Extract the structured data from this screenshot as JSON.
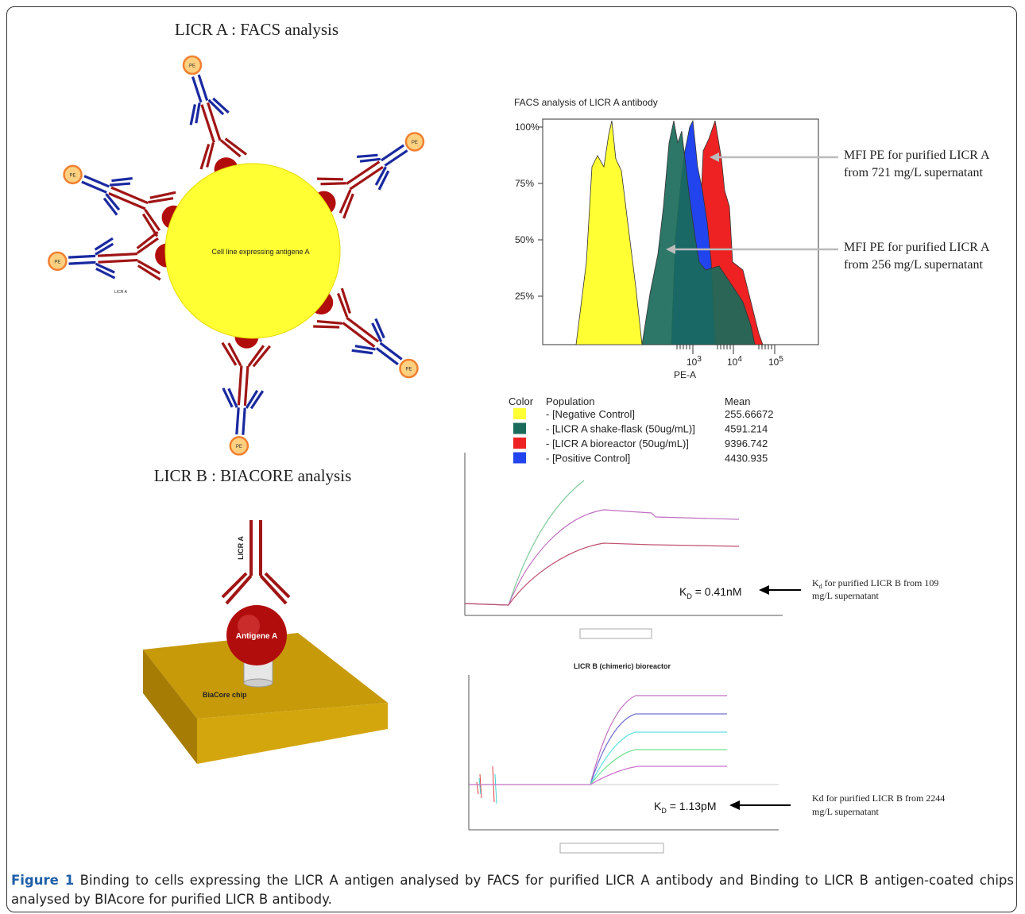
{
  "facs": {
    "title": "LICR A : FACS analysis",
    "cell_label": "Cell line expressing antigene A",
    "pe_label": "PE",
    "antibody_label": "LICR A",
    "histogram": {
      "title": "FACS analysis of LICR A antibody",
      "yticks": [
        "100%",
        "75%",
        "50%",
        "25%"
      ],
      "xticks": [
        {
          "base": "10",
          "exp": "3"
        },
        {
          "base": "10",
          "exp": "4"
        },
        {
          "base": "10",
          "exp": "5"
        }
      ],
      "xlabel": "PE-A"
    },
    "annotations": [
      [
        "MFI PE for purified LICR A",
        "from 721 mg/L supernatant"
      ],
      [
        "MFI PE for purified LICR A",
        "from 256 mg/L supernatant"
      ]
    ],
    "legend": {
      "header": [
        "Color",
        "Population",
        "Mean"
      ],
      "rows": [
        {
          "color": "#ffff33",
          "population": "- [Negative Control]",
          "mean": "255.66672"
        },
        {
          "color": "#1a6b5a",
          "population": "- [LICR A shake-flask (50ug/mL)]",
          "mean": "4591.214"
        },
        {
          "color": "#ee2222",
          "population": "- [LICR A bioreactor (50ug/mL)]",
          "mean": "9396.742"
        },
        {
          "color": "#2244ee",
          "population": "- [Positive Control]",
          "mean": "4430.935"
        }
      ]
    }
  },
  "biacore": {
    "title": "LICR B : BIACORE analysis",
    "antibody_label": "LICR A",
    "antigen_label": "Antigene A",
    "chip_label": "BiaCore chip",
    "sensorgram1": {
      "kd": {
        "symbol": "K",
        "sub": "D",
        "value": " = 0.41nM"
      },
      "note": {
        "symbol": "K",
        "sub": "d",
        "line1": " for purified LICR B from 109",
        "line2": "mg/L supernatant"
      }
    },
    "sensorgram2": {
      "title": "LICR B (chimeric) bioreactor",
      "kd": {
        "symbol": "K",
        "sub": "D",
        "value": " = 1.13pM"
      },
      "note": {
        "line1": "Kd for purified LICR B from 2244",
        "line2": "mg/L supernatant"
      }
    }
  },
  "caption": {
    "label": "Figure 1",
    "text": " Binding to cells expressing the LICR A antigen analysed by FACS for purified LICR A antibody and Binding to LICR B antigen-coated chips analysed by BIAcore for purified LICR B antibody."
  }
}
